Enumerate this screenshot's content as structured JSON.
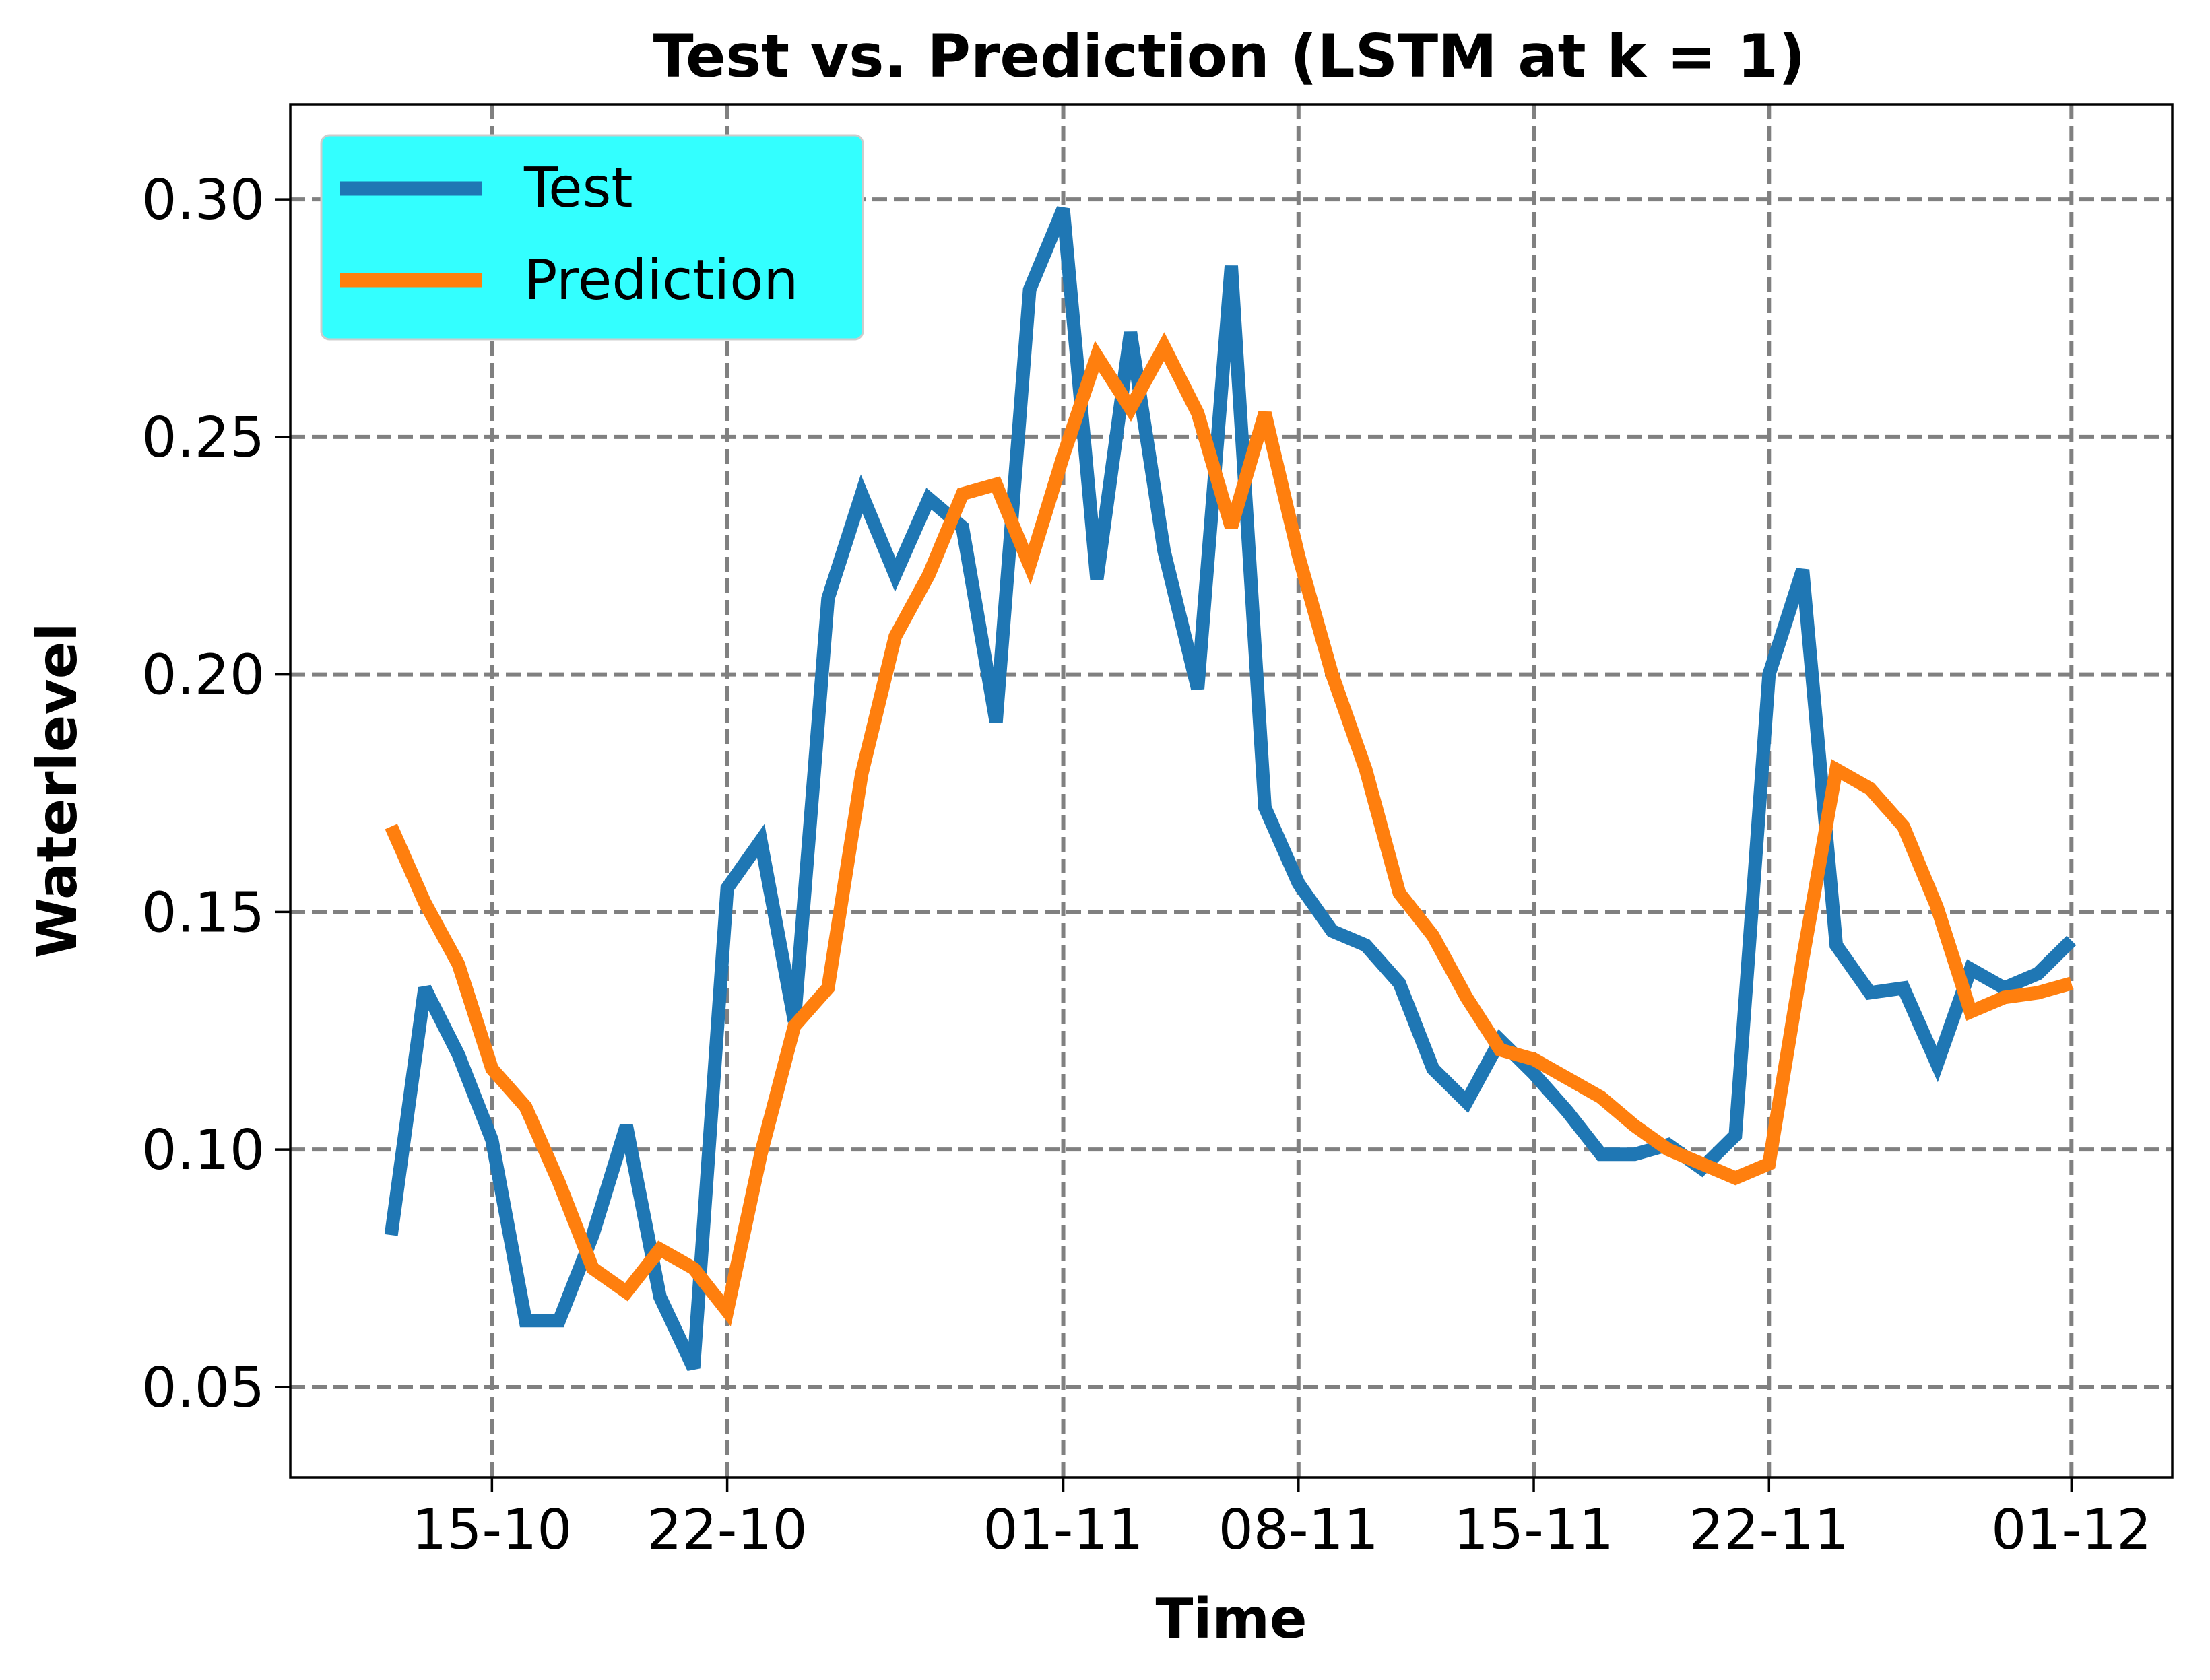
{
  "chart_data": {
    "type": "line",
    "title": "Test vs. Prediction (LSTM at k = 1)",
    "xlabel": "Time",
    "ylabel": "Waterlevel",
    "ylim": [
      0.031,
      0.32
    ],
    "xlim": [
      "2021-10-09",
      "2021-12-04"
    ],
    "grid": true,
    "grid_style": "dashed",
    "legend": "top-left",
    "legend_bg": "#33ffff",
    "x_ticks": [
      {
        "date": "2021-10-15",
        "label": "15-10"
      },
      {
        "date": "2021-10-22",
        "label": "22-10"
      },
      {
        "date": "2021-11-01",
        "label": "01-11"
      },
      {
        "date": "2021-11-08",
        "label": "08-11"
      },
      {
        "date": "2021-11-15",
        "label": "15-11"
      },
      {
        "date": "2021-11-22",
        "label": "22-11"
      },
      {
        "date": "2021-12-01",
        "label": "01-12"
      }
    ],
    "y_ticks": [
      {
        "value": 0.05,
        "label": "0.05"
      },
      {
        "value": 0.1,
        "label": "0.10"
      },
      {
        "value": 0.15,
        "label": "0.15"
      },
      {
        "value": 0.2,
        "label": "0.20"
      },
      {
        "value": 0.25,
        "label": "0.25"
      },
      {
        "value": 0.3,
        "label": "0.30"
      }
    ],
    "x": [
      "2021-10-12",
      "2021-10-13",
      "2021-10-14",
      "2021-10-15",
      "2021-10-16",
      "2021-10-17",
      "2021-10-18",
      "2021-10-19",
      "2021-10-20",
      "2021-10-21",
      "2021-10-22",
      "2021-10-23",
      "2021-10-24",
      "2021-10-25",
      "2021-10-26",
      "2021-10-27",
      "2021-10-28",
      "2021-10-29",
      "2021-10-30",
      "2021-10-31",
      "2021-11-01",
      "2021-11-02",
      "2021-11-03",
      "2021-11-04",
      "2021-11-05",
      "2021-11-06",
      "2021-11-07",
      "2021-11-08",
      "2021-11-09",
      "2021-11-10",
      "2021-11-11",
      "2021-11-12",
      "2021-11-13",
      "2021-11-14",
      "2021-11-15",
      "2021-11-16",
      "2021-11-17",
      "2021-11-18",
      "2021-11-19",
      "2021-11-20",
      "2021-11-21",
      "2021-11-22",
      "2021-11-23",
      "2021-11-24",
      "2021-11-25",
      "2021-11-26",
      "2021-11-27",
      "2021-11-28",
      "2021-11-29",
      "2021-11-30",
      "2021-12-01"
    ],
    "series": [
      {
        "name": "Test",
        "color": "#1f77b4",
        "values": [
          0.082,
          0.134,
          0.12,
          0.102,
          0.064,
          0.064,
          0.082,
          0.105,
          0.069,
          0.054,
          0.155,
          0.165,
          0.127,
          0.216,
          0.238,
          0.221,
          0.237,
          0.231,
          0.19,
          0.281,
          0.298,
          0.22,
          0.272,
          0.226,
          0.197,
          0.286,
          0.172,
          0.156,
          0.146,
          0.143,
          0.135,
          0.117,
          0.11,
          0.123,
          0.116,
          0.108,
          0.099,
          0.099,
          0.101,
          0.096,
          0.103,
          0.2,
          0.222,
          0.143,
          0.133,
          0.134,
          0.118,
          0.138,
          0.134,
          0.137,
          0.144
        ]
      },
      {
        "name": "Prediction",
        "color": "#ff7f0e",
        "values": [
          0.168,
          0.152,
          0.139,
          0.117,
          0.109,
          0.093,
          0.075,
          0.07,
          0.079,
          0.075,
          0.066,
          0.099,
          0.126,
          0.134,
          0.179,
          0.208,
          0.221,
          0.238,
          0.24,
          0.223,
          0.246,
          0.267,
          0.256,
          0.269,
          0.255,
          0.231,
          0.255,
          0.225,
          0.2,
          0.18,
          0.154,
          0.145,
          0.132,
          0.121,
          0.119,
          0.115,
          0.111,
          0.105,
          0.1,
          0.097,
          0.094,
          0.097,
          0.14,
          0.18,
          0.176,
          0.168,
          0.151,
          0.129,
          0.132,
          0.133,
          0.135
        ]
      }
    ]
  }
}
